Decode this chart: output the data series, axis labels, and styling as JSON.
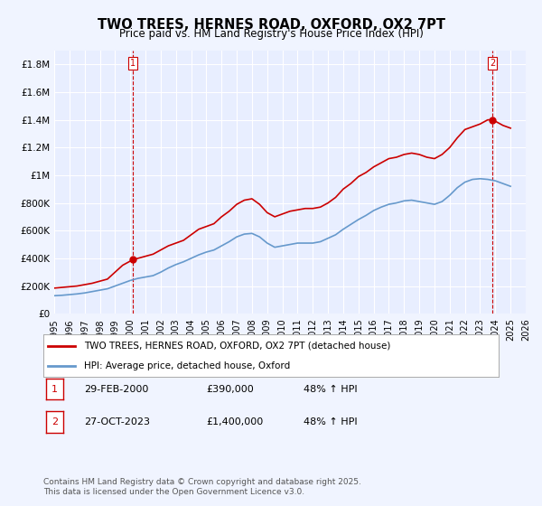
{
  "title": "TWO TREES, HERNES ROAD, OXFORD, OX2 7PT",
  "subtitle": "Price paid vs. HM Land Registry's House Price Index (HPI)",
  "xlabel": "",
  "ylabel": "",
  "background_color": "#f0f4ff",
  "plot_bg_color": "#e8eeff",
  "grid_color": "#ffffff",
  "red_color": "#cc0000",
  "blue_color": "#6699cc",
  "ylim": [
    0,
    1900000
  ],
  "xlim": [
    1995,
    2026
  ],
  "yticks": [
    0,
    200000,
    400000,
    600000,
    800000,
    1000000,
    1200000,
    1400000,
    1600000,
    1800000
  ],
  "ytick_labels": [
    "£0",
    "£200K",
    "£400K",
    "£600K",
    "£800K",
    "£1M",
    "£1.2M",
    "£1.4M",
    "£1.6M",
    "£1.8M"
  ],
  "xticks": [
    1995,
    1996,
    1997,
    1998,
    1999,
    2000,
    2001,
    2002,
    2003,
    2004,
    2005,
    2006,
    2007,
    2008,
    2009,
    2010,
    2011,
    2012,
    2013,
    2014,
    2015,
    2016,
    2017,
    2018,
    2019,
    2020,
    2021,
    2022,
    2023,
    2024,
    2025,
    2026
  ],
  "point1_x": 2000.16,
  "point1_y": 390000,
  "point2_x": 2023.82,
  "point2_y": 1400000,
  "legend_label_red": "TWO TREES, HERNES ROAD, OXFORD, OX2 7PT (detached house)",
  "legend_label_blue": "HPI: Average price, detached house, Oxford",
  "annotation1_label": "1",
  "annotation1_date": "29-FEB-2000",
  "annotation1_price": "£390,000",
  "annotation1_hpi": "48% ↑ HPI",
  "annotation2_label": "2",
  "annotation2_date": "27-OCT-2023",
  "annotation2_price": "£1,400,000",
  "annotation2_hpi": "48% ↑ HPI",
  "footer": "Contains HM Land Registry data © Crown copyright and database right 2025.\nThis data is licensed under the Open Government Licence v3.0.",
  "red_x": [
    1995.0,
    1995.5,
    1996.0,
    1996.5,
    1997.0,
    1997.5,
    1998.0,
    1998.5,
    1999.0,
    1999.5,
    2000.0,
    2000.16,
    2000.5,
    2001.0,
    2001.5,
    2002.0,
    2002.5,
    2003.0,
    2003.5,
    2004.0,
    2004.5,
    2005.0,
    2005.5,
    2006.0,
    2006.5,
    2007.0,
    2007.5,
    2008.0,
    2008.5,
    2009.0,
    2009.5,
    2010.0,
    2010.5,
    2011.0,
    2011.5,
    2012.0,
    2012.5,
    2013.0,
    2013.5,
    2014.0,
    2014.5,
    2015.0,
    2015.5,
    2016.0,
    2016.5,
    2017.0,
    2017.5,
    2018.0,
    2018.5,
    2019.0,
    2019.5,
    2020.0,
    2020.5,
    2021.0,
    2021.5,
    2022.0,
    2022.5,
    2023.0,
    2023.5,
    2023.82,
    2024.0,
    2024.5,
    2025.0
  ],
  "red_y": [
    185000,
    190000,
    195000,
    200000,
    210000,
    220000,
    235000,
    250000,
    300000,
    350000,
    380000,
    390000,
    400000,
    415000,
    430000,
    460000,
    490000,
    510000,
    530000,
    570000,
    610000,
    630000,
    650000,
    700000,
    740000,
    790000,
    820000,
    830000,
    790000,
    730000,
    700000,
    720000,
    740000,
    750000,
    760000,
    760000,
    770000,
    800000,
    840000,
    900000,
    940000,
    990000,
    1020000,
    1060000,
    1090000,
    1120000,
    1130000,
    1150000,
    1160000,
    1150000,
    1130000,
    1120000,
    1150000,
    1200000,
    1270000,
    1330000,
    1350000,
    1370000,
    1400000,
    1400000,
    1390000,
    1360000,
    1340000
  ],
  "blue_x": [
    1995.0,
    1995.5,
    1996.0,
    1996.5,
    1997.0,
    1997.5,
    1998.0,
    1998.5,
    1999.0,
    1999.5,
    2000.0,
    2000.5,
    2001.0,
    2001.5,
    2002.0,
    2002.5,
    2003.0,
    2003.5,
    2004.0,
    2004.5,
    2005.0,
    2005.5,
    2006.0,
    2006.5,
    2007.0,
    2007.5,
    2008.0,
    2008.5,
    2009.0,
    2009.5,
    2010.0,
    2010.5,
    2011.0,
    2011.5,
    2012.0,
    2012.5,
    2013.0,
    2013.5,
    2014.0,
    2014.5,
    2015.0,
    2015.5,
    2016.0,
    2016.5,
    2017.0,
    2017.5,
    2018.0,
    2018.5,
    2019.0,
    2019.5,
    2020.0,
    2020.5,
    2021.0,
    2021.5,
    2022.0,
    2022.5,
    2023.0,
    2023.5,
    2024.0,
    2024.5,
    2025.0
  ],
  "blue_y": [
    130000,
    133000,
    138000,
    143000,
    150000,
    160000,
    170000,
    180000,
    200000,
    220000,
    240000,
    255000,
    265000,
    275000,
    300000,
    330000,
    355000,
    375000,
    400000,
    425000,
    445000,
    460000,
    490000,
    520000,
    555000,
    575000,
    580000,
    555000,
    510000,
    480000,
    490000,
    500000,
    510000,
    510000,
    510000,
    520000,
    545000,
    570000,
    610000,
    645000,
    680000,
    710000,
    745000,
    770000,
    790000,
    800000,
    815000,
    820000,
    810000,
    800000,
    790000,
    810000,
    855000,
    910000,
    950000,
    970000,
    975000,
    970000,
    960000,
    940000,
    920000
  ]
}
